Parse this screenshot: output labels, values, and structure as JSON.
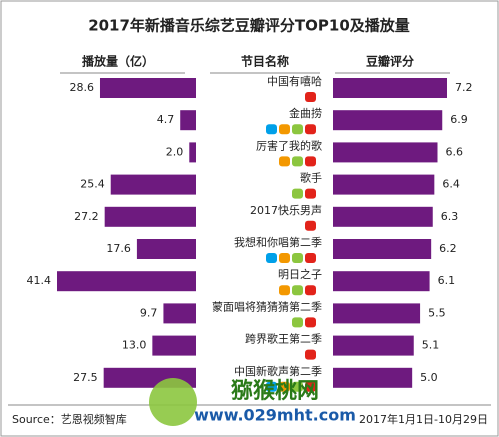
{
  "chart_data": {
    "type": "butterfly-bar",
    "title": "2017年新播音乐综艺豆瓣评分TOP10及播放量",
    "left_header": "播放量（亿）",
    "center_header": "节目名称",
    "right_header": "豆瓣评分",
    "categories": [
      "中国有嘻哈",
      "金曲捞",
      "厉害了我的歌",
      "歌手",
      "2017快乐男声",
      "我想和你唱第二季",
      "明日之子",
      "蒙面唱将猜猜猜第二季",
      "跨界歌王第二季",
      "中国新歌声第二季"
    ],
    "series": [
      {
        "name": "播放量（亿）",
        "color": "#6e1a7f",
        "values": [
          28.6,
          4.7,
          2.0,
          25.4,
          27.2,
          17.6,
          41.4,
          9.7,
          13.0,
          27.5
        ],
        "value_labels": [
          "28.6",
          "4.7",
          "2.0",
          "25.4",
          "27.2",
          "17.6",
          "41.4",
          "9.7",
          "13.0",
          "27.5"
        ]
      },
      {
        "name": "豆瓣评分",
        "color": "#6e1a7f",
        "values": [
          7.2,
          6.9,
          6.6,
          6.4,
          6.3,
          6.2,
          6.1,
          5.5,
          5.1,
          5.0
        ],
        "value_labels": [
          "7.2",
          "6.9",
          "6.6",
          "6.4",
          "6.3",
          "6.2",
          "6.1",
          "5.5",
          "5.1",
          "5.0"
        ]
      }
    ],
    "source": "Source：艺恩视频智库",
    "period": "2017年1月1日-10月29日",
    "watermark": "猕猴桃网",
    "watermark_url": "www.029mht.com"
  }
}
